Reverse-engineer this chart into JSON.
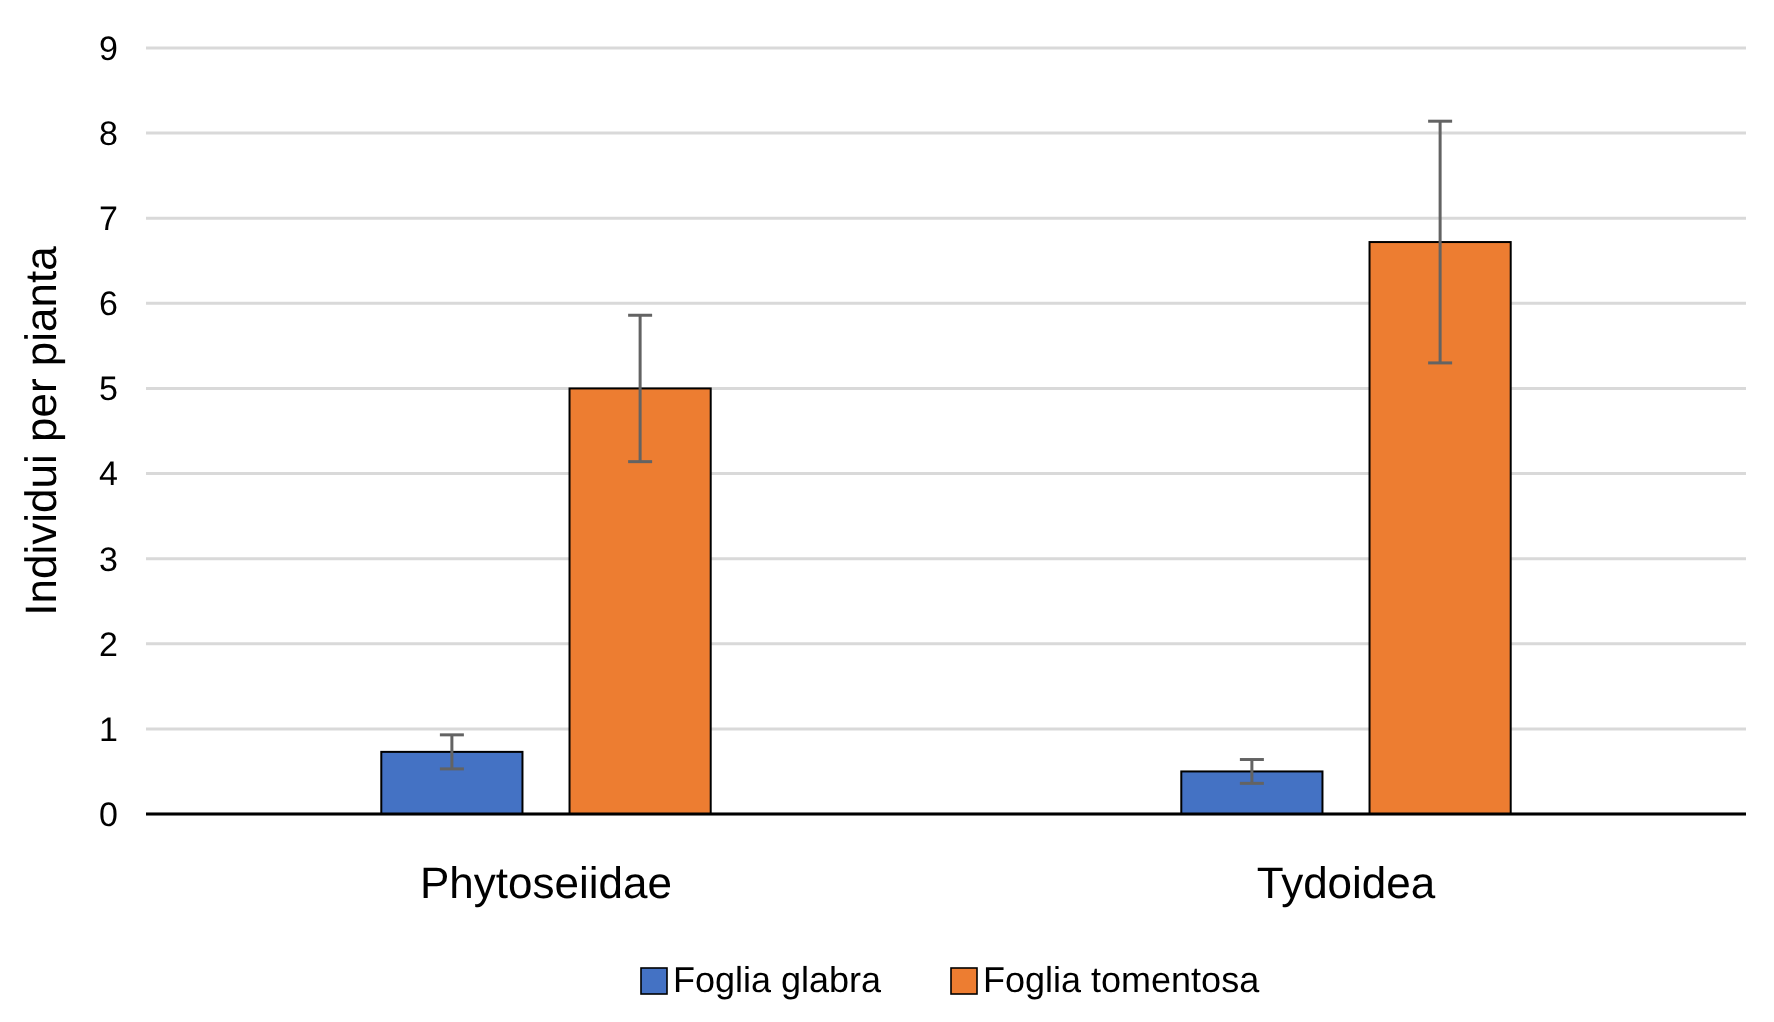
{
  "chart_data": {
    "type": "bar",
    "ylabel": "Individui per pianta",
    "categories": [
      "Phytoseiidae",
      "Tydoidea"
    ],
    "series": [
      {
        "name": "Foglia glabra",
        "color": "#4472c4",
        "values": [
          0.73,
          0.5
        ],
        "errors": [
          0.2,
          0.14
        ]
      },
      {
        "name": "Foglia tomentosa",
        "color": "#ed7d31",
        "values": [
          5.0,
          6.72
        ],
        "errors": [
          0.86,
          1.42
        ]
      }
    ],
    "ylim": [
      0,
      9
    ],
    "yticks": [
      0,
      1,
      2,
      3,
      4,
      5,
      6,
      7,
      8,
      9
    ],
    "grid": "y",
    "legend": "bottom"
  }
}
